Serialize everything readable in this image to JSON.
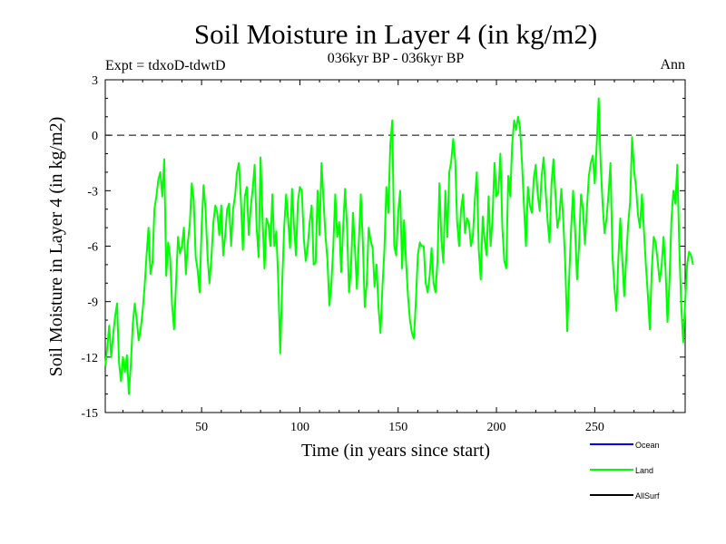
{
  "chart_data": {
    "type": "line",
    "title": "Soil Moisture in Layer 4 (in kg/m2)",
    "subtitle": "036kyr BP - 036kyr BP",
    "experiment_label": "Expt = tdxoD-tdwtD",
    "season_label": "Ann",
    "xlabel": "Time (in years since start)",
    "ylabel": "Soil Moisture in Layer 4 (in kg/m2)",
    "xlim": [
      1,
      296
    ],
    "ylim": [
      -15,
      3
    ],
    "x_ticks": [
      50,
      100,
      150,
      200,
      250
    ],
    "y_ticks": [
      3,
      0,
      -3,
      -6,
      -9,
      -12,
      -15
    ],
    "reference_line": {
      "y": 0,
      "style": "dashed",
      "color": "#000000"
    },
    "legend": {
      "placement": "bottom-right",
      "entries": [
        {
          "name": "Ocean",
          "color": "#0000ff"
        },
        {
          "name": "Land",
          "color": "#00ff00"
        },
        {
          "name": "AllSurf",
          "color": "#000000"
        }
      ]
    },
    "series": [
      {
        "name": "Land",
        "color": "#00ff00",
        "x_start": 1,
        "x_step": 1,
        "values": [
          -12.5,
          -11.5,
          -10.3,
          -12.0,
          -10.8,
          -9.8,
          -9.1,
          -12.3,
          -13.3,
          -12.0,
          -12.8,
          -11.9,
          -14.0,
          -12.4,
          -10.2,
          -9.1,
          -10.0,
          -11.1,
          -10.5,
          -9.5,
          -8.2,
          -6.5,
          -5.0,
          -7.5,
          -6.9,
          -4.0,
          -3.3,
          -2.4,
          -2.0,
          -3.3,
          -1.3,
          -7.6,
          -5.8,
          -6.6,
          -9.2,
          -10.5,
          -8.0,
          -5.5,
          -6.4,
          -6.0,
          -5.0,
          -7.5,
          -5.8,
          -4.8,
          -2.6,
          -3.5,
          -6.6,
          -7.3,
          -8.5,
          -5.0,
          -2.7,
          -4.0,
          -6.5,
          -8.0,
          -6.6,
          -4.7,
          -3.8,
          -4.2,
          -5.4,
          -3.8,
          -6.5,
          -5.4,
          -4.0,
          -3.7,
          -6.0,
          -4.0,
          -3.3,
          -2.0,
          -1.5,
          -3.5,
          -6.2,
          -3.3,
          -2.8,
          -5.4,
          -3.9,
          -2.9,
          -1.6,
          -5.0,
          -6.6,
          -1.2,
          -4.5,
          -7.2,
          -4.5,
          -4.8,
          -6.0,
          -3.2,
          -6.0,
          -5.2,
          -7.9,
          -11.8,
          -8.0,
          -5.0,
          -3.2,
          -4.5,
          -6.1,
          -2.9,
          -4.9,
          -6.5,
          -3.6,
          -2.8,
          -3.0,
          -5.6,
          -6.8,
          -6.0,
          -4.7,
          -3.8,
          -7.0,
          -6.9,
          -3.0,
          -5.4,
          -1.5,
          -3.5,
          -5.4,
          -6.7,
          -9.2,
          -8.1,
          -6.0,
          -3.2,
          -5.5,
          -4.7,
          -7.4,
          -5.0,
          -2.9,
          -5.0,
          -8.5,
          -7.2,
          -4.2,
          -6.1,
          -8.3,
          -5.7,
          -3.2,
          -5.7,
          -9.3,
          -8.0,
          -5.0,
          -5.7,
          -6.1,
          -8.2,
          -7.0,
          -9.3,
          -10.7,
          -8.2,
          -6.2,
          -2.8,
          -4.2,
          -0.5,
          0.8,
          -6.0,
          -6.5,
          -4.2,
          -3.0,
          -7.2,
          -4.6,
          -6.8,
          -8.7,
          -10.0,
          -10.7,
          -11.0,
          -9.0,
          -6.5,
          -5.8,
          -6.0,
          -6.0,
          -8.0,
          -8.5,
          -7.6,
          -6.1,
          -8.0,
          -8.5,
          -6.8,
          -2.6,
          -5.7,
          -6.9,
          -3.0,
          -5.5,
          -2.0,
          -1.4,
          -0.2,
          -1.3,
          -4.7,
          -6.0,
          -4.0,
          -3.2,
          -5.3,
          -4.5,
          -4.7,
          -6.0,
          -5.5,
          -3.5,
          -2.0,
          -6.2,
          -7.8,
          -4.4,
          -5.7,
          -6.5,
          -3.3,
          -6.0,
          -4.5,
          -1.5,
          -3.3,
          -3.1,
          -1.0,
          -5.0,
          -6.8,
          -7.2,
          -2.2,
          -3.3,
          -0.5,
          0.8,
          0.3,
          1.0,
          0.4,
          -1.5,
          -3.8,
          -6.0,
          -2.8,
          -3.8,
          -4.2,
          -2.3,
          -1.6,
          -3.2,
          -4.1,
          -2.2,
          -1.2,
          -3.0,
          -4.6,
          -5.8,
          -2.6,
          -1.3,
          -3.2,
          -5.0,
          -4.4,
          -2.9,
          -4.6,
          -7.0,
          -10.6,
          -7.7,
          -5.0,
          -3.0,
          -5.1,
          -7.8,
          -6.0,
          -3.2,
          -4.0,
          -5.9,
          -4.0,
          -2.2,
          -1.5,
          -1.1,
          -2.6,
          -0.5,
          2.0,
          -1.5,
          -3.7,
          -5.3,
          -4.5,
          -3.2,
          -1.5,
          -6.5,
          -8.2,
          -9.5,
          -6.7,
          -4.5,
          -6.7,
          -8.7,
          -6.7,
          -4.8,
          -3.6,
          -0.1,
          -1.9,
          -2.8,
          -4.3,
          -5.0,
          -3.2,
          -5.1,
          -7.0,
          -8.6,
          -10.5,
          -7.3,
          -5.5,
          -5.8,
          -6.8,
          -7.9,
          -7.1,
          -5.5,
          -7.2,
          -10.1,
          -8.0,
          -4.6,
          -3.0,
          -3.7,
          -1.6,
          -6.0,
          -9.2,
          -11.2,
          -9.0,
          -7.0,
          -6.3,
          -6.5,
          -7.0
        ]
      }
    ]
  }
}
